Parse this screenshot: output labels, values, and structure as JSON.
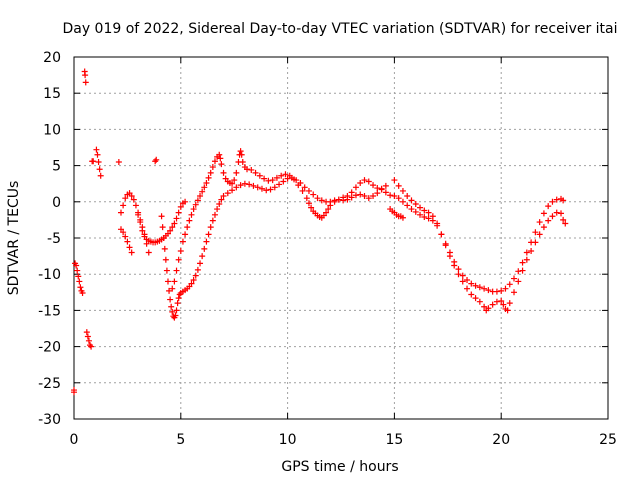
{
  "chart_data": {
    "type": "scatter",
    "title": "Day 019 of 2022, Sidereal Day-to-day VTEC variation (SDTVAR) for receiver itai",
    "xlabel": "GPS time / hours",
    "ylabel": "SDTVAR / TECUs",
    "xlim": [
      0,
      25
    ],
    "ylim": [
      -30,
      20
    ],
    "x_ticks": [
      0,
      5,
      10,
      15,
      20,
      25
    ],
    "y_ticks": [
      -30,
      -25,
      -20,
      -15,
      -10,
      -5,
      0,
      5,
      10,
      15,
      20
    ],
    "x_tick_labels": [
      "0",
      "5",
      "10",
      "15",
      "20",
      "25"
    ],
    "y_tick_labels": [
      "-30",
      "-25",
      "-20",
      "-15",
      "-10",
      "-5",
      "0",
      "5",
      "10",
      "15",
      "20"
    ],
    "grid": true,
    "marker": "+",
    "color": "#ff0000",
    "series": [
      {
        "name": "sdtvar",
        "points": [
          [
            0.0,
            -26.0
          ],
          [
            0.0,
            -26.3
          ],
          [
            0.05,
            -8.5
          ],
          [
            0.1,
            -8.8
          ],
          [
            0.15,
            -9.5
          ],
          [
            0.2,
            -10.3
          ],
          [
            0.25,
            -11.0
          ],
          [
            0.3,
            -11.8
          ],
          [
            0.35,
            -12.3
          ],
          [
            0.4,
            -12.6
          ],
          [
            0.5,
            18.0
          ],
          [
            0.52,
            17.5
          ],
          [
            0.55,
            16.5
          ],
          [
            0.6,
            -18.0
          ],
          [
            0.65,
            -18.6
          ],
          [
            0.7,
            -19.2
          ],
          [
            0.75,
            -19.8
          ],
          [
            0.8,
            -20.0
          ],
          [
            0.85,
            5.6
          ],
          [
            0.9,
            5.6
          ],
          [
            1.05,
            7.2
          ],
          [
            1.1,
            6.5
          ],
          [
            1.15,
            5.5
          ],
          [
            1.2,
            4.5
          ],
          [
            1.25,
            3.6
          ],
          [
            2.1,
            5.5
          ],
          [
            3.8,
            5.6
          ],
          [
            3.85,
            5.8
          ],
          [
            2.2,
            -1.5
          ],
          [
            2.3,
            -0.5
          ],
          [
            2.4,
            0.5
          ],
          [
            2.5,
            1.0
          ],
          [
            2.6,
            1.2
          ],
          [
            2.7,
            0.8
          ],
          [
            2.8,
            0.3
          ],
          [
            2.9,
            -0.5
          ],
          [
            3.0,
            -1.5
          ],
          [
            3.1,
            -2.8
          ],
          [
            3.2,
            -4.0
          ],
          [
            3.3,
            -4.8
          ],
          [
            3.4,
            -5.2
          ],
          [
            3.5,
            -5.4
          ],
          [
            3.6,
            -5.5
          ],
          [
            3.7,
            -5.6
          ],
          [
            3.8,
            -5.6
          ],
          [
            3.9,
            -5.5
          ],
          [
            4.0,
            -5.4
          ],
          [
            4.1,
            -5.2
          ],
          [
            4.2,
            -5.0
          ],
          [
            4.3,
            -4.7
          ],
          [
            4.4,
            -4.4
          ],
          [
            4.5,
            -4.0
          ],
          [
            4.6,
            -3.5
          ],
          [
            4.7,
            -3.0
          ],
          [
            4.8,
            -2.3
          ],
          [
            4.9,
            -1.5
          ],
          [
            5.0,
            -0.7
          ],
          [
            5.1,
            -0.2
          ],
          [
            5.2,
            0.0
          ],
          [
            2.2,
            -3.8
          ],
          [
            2.3,
            -4.2
          ],
          [
            2.4,
            -4.8
          ],
          [
            2.5,
            -5.5
          ],
          [
            2.6,
            -6.3
          ],
          [
            2.7,
            -7.0
          ],
          [
            3.0,
            -1.8
          ],
          [
            3.1,
            -2.5
          ],
          [
            3.2,
            -3.5
          ],
          [
            3.3,
            -4.5
          ],
          [
            3.4,
            -5.8
          ],
          [
            3.5,
            -7.0
          ],
          [
            4.1,
            -2.0
          ],
          [
            4.15,
            -3.5
          ],
          [
            4.2,
            -5.0
          ],
          [
            4.25,
            -6.5
          ],
          [
            4.3,
            -8.0
          ],
          [
            4.35,
            -9.5
          ],
          [
            4.4,
            -11.0
          ],
          [
            4.45,
            -12.3
          ],
          [
            4.5,
            -13.5
          ],
          [
            4.55,
            -14.5
          ],
          [
            4.6,
            -15.2
          ],
          [
            4.65,
            -15.8
          ],
          [
            4.7,
            -16.0
          ],
          [
            4.75,
            -15.7
          ],
          [
            4.8,
            -15.0
          ],
          [
            4.85,
            -14.0
          ],
          [
            4.9,
            -13.3
          ],
          [
            4.95,
            -12.8
          ],
          [
            5.0,
            -12.6
          ],
          [
            5.1,
            -12.4
          ],
          [
            5.2,
            -12.2
          ],
          [
            5.3,
            -12.0
          ],
          [
            5.4,
            -11.7
          ],
          [
            5.5,
            -11.3
          ],
          [
            5.6,
            -10.8
          ],
          [
            5.7,
            -10.2
          ],
          [
            5.8,
            -9.4
          ],
          [
            5.9,
            -8.5
          ],
          [
            6.0,
            -7.5
          ],
          [
            6.1,
            -6.5
          ],
          [
            6.2,
            -5.5
          ],
          [
            6.3,
            -4.5
          ],
          [
            6.4,
            -3.5
          ],
          [
            6.5,
            -2.6
          ],
          [
            6.6,
            -1.8
          ],
          [
            6.7,
            -1.0
          ],
          [
            6.8,
            -0.3
          ],
          [
            6.9,
            0.3
          ],
          [
            7.0,
            0.8
          ],
          [
            7.2,
            1.2
          ],
          [
            7.4,
            1.6
          ],
          [
            7.6,
            2.0
          ],
          [
            7.8,
            2.3
          ],
          [
            8.0,
            2.5
          ],
          [
            8.2,
            2.4
          ],
          [
            8.4,
            2.2
          ],
          [
            8.6,
            2.0
          ],
          [
            8.8,
            1.8
          ],
          [
            9.0,
            1.6
          ],
          [
            9.2,
            1.7
          ],
          [
            9.4,
            2.0
          ],
          [
            9.6,
            2.4
          ],
          [
            9.8,
            2.8
          ],
          [
            10.0,
            3.2
          ],
          [
            10.2,
            3.3
          ],
          [
            10.4,
            3.0
          ],
          [
            10.6,
            2.6
          ],
          [
            10.8,
            2.0
          ],
          [
            11.0,
            1.5
          ],
          [
            11.2,
            1.0
          ],
          [
            11.4,
            0.5
          ],
          [
            11.6,
            0.2
          ],
          [
            11.8,
            0.0
          ],
          [
            12.0,
            0.0
          ],
          [
            12.2,
            0.2
          ],
          [
            12.4,
            0.3
          ],
          [
            12.6,
            0.2
          ],
          [
            12.8,
            0.3
          ],
          [
            13.0,
            0.6
          ],
          [
            13.2,
            0.9
          ],
          [
            13.4,
            1.0
          ],
          [
            13.6,
            0.8
          ],
          [
            13.8,
            0.5
          ],
          [
            14.0,
            0.8
          ],
          [
            14.2,
            1.2
          ],
          [
            14.4,
            1.8
          ],
          [
            14.6,
            2.2
          ],
          [
            4.6,
            -12.0
          ],
          [
            4.7,
            -11.0
          ],
          [
            4.8,
            -9.5
          ],
          [
            4.9,
            -8.0
          ],
          [
            5.0,
            -6.8
          ],
          [
            5.1,
            -5.5
          ],
          [
            5.2,
            -4.5
          ],
          [
            5.3,
            -3.5
          ],
          [
            5.4,
            -2.6
          ],
          [
            5.5,
            -1.8
          ],
          [
            5.6,
            -1.0
          ],
          [
            5.7,
            -0.4
          ],
          [
            5.8,
            0.2
          ],
          [
            5.9,
            0.8
          ],
          [
            6.0,
            1.4
          ],
          [
            6.1,
            2.0
          ],
          [
            6.2,
            2.6
          ],
          [
            6.3,
            3.3
          ],
          [
            6.4,
            4.0
          ],
          [
            6.5,
            4.8
          ],
          [
            6.6,
            5.6
          ],
          [
            6.7,
            6.2
          ],
          [
            6.8,
            6.5
          ],
          [
            6.85,
            6.0
          ],
          [
            6.9,
            5.2
          ],
          [
            7.0,
            4.0
          ],
          [
            7.1,
            3.2
          ],
          [
            7.2,
            2.8
          ],
          [
            7.3,
            2.6
          ],
          [
            7.4,
            2.5
          ],
          [
            7.5,
            3.0
          ],
          [
            7.6,
            4.0
          ],
          [
            7.7,
            5.5
          ],
          [
            7.75,
            6.5
          ],
          [
            7.8,
            7.0
          ],
          [
            7.85,
            6.5
          ],
          [
            7.9,
            5.5
          ],
          [
            8.0,
            4.8
          ],
          [
            8.1,
            4.5
          ],
          [
            8.3,
            4.4
          ],
          [
            8.5,
            4.0
          ],
          [
            8.7,
            3.6
          ],
          [
            8.9,
            3.2
          ],
          [
            9.1,
            2.9
          ],
          [
            9.3,
            3.0
          ],
          [
            9.5,
            3.3
          ],
          [
            9.7,
            3.6
          ],
          [
            9.9,
            3.8
          ],
          [
            10.1,
            3.6
          ],
          [
            10.3,
            3.1
          ],
          [
            10.5,
            2.3
          ],
          [
            10.7,
            1.5
          ],
          [
            10.9,
            0.5
          ],
          [
            11.0,
            -0.2
          ],
          [
            11.1,
            -0.8
          ],
          [
            11.2,
            -1.3
          ],
          [
            11.3,
            -1.6
          ],
          [
            11.4,
            -1.9
          ],
          [
            11.5,
            -2.1
          ],
          [
            11.6,
            -2.2
          ],
          [
            11.7,
            -1.9
          ],
          [
            11.8,
            -1.5
          ],
          [
            11.9,
            -1.0
          ],
          [
            12.0,
            -0.5
          ],
          [
            12.2,
            0.0
          ],
          [
            12.4,
            0.3
          ],
          [
            12.6,
            0.6
          ],
          [
            12.8,
            0.8
          ],
          [
            13.0,
            1.3
          ],
          [
            13.2,
            2.0
          ],
          [
            13.4,
            2.6
          ],
          [
            13.6,
            3.0
          ],
          [
            13.8,
            2.8
          ],
          [
            14.0,
            2.3
          ],
          [
            14.2,
            1.9
          ],
          [
            14.4,
            1.7
          ],
          [
            14.6,
            1.3
          ],
          [
            14.8,
            0.9
          ],
          [
            14.8,
            -1.0
          ],
          [
            14.9,
            -1.3
          ],
          [
            15.0,
            -1.5
          ],
          [
            15.1,
            -1.8
          ],
          [
            15.2,
            -2.0
          ],
          [
            15.3,
            -2.0
          ],
          [
            15.4,
            -2.2
          ],
          [
            15.0,
            0.8
          ],
          [
            15.2,
            0.5
          ],
          [
            15.4,
            0.0
          ],
          [
            15.6,
            -0.5
          ],
          [
            15.8,
            -1.0
          ],
          [
            16.0,
            -1.4
          ],
          [
            16.2,
            -1.8
          ],
          [
            16.4,
            -2.1
          ],
          [
            16.6,
            -2.3
          ],
          [
            16.8,
            -2.6
          ],
          [
            17.0,
            -3.3
          ],
          [
            17.2,
            -4.5
          ],
          [
            17.4,
            -5.8
          ],
          [
            17.6,
            -7.0
          ],
          [
            17.8,
            -8.3
          ],
          [
            18.0,
            -9.3
          ],
          [
            18.2,
            -10.2
          ],
          [
            18.4,
            -10.8
          ],
          [
            18.6,
            -11.3
          ],
          [
            18.8,
            -11.6
          ],
          [
            19.0,
            -11.8
          ],
          [
            19.2,
            -12.0
          ],
          [
            19.4,
            -12.2
          ],
          [
            19.6,
            -12.4
          ],
          [
            19.8,
            -12.4
          ],
          [
            20.0,
            -12.3
          ],
          [
            20.2,
            -12.0
          ],
          [
            20.4,
            -11.4
          ],
          [
            20.6,
            -10.6
          ],
          [
            20.8,
            -9.6
          ],
          [
            21.0,
            -8.4
          ],
          [
            21.2,
            -7.0
          ],
          [
            21.4,
            -5.6
          ],
          [
            21.6,
            -4.2
          ],
          [
            21.8,
            -2.8
          ],
          [
            22.0,
            -1.6
          ],
          [
            22.2,
            -0.6
          ],
          [
            22.4,
            0.0
          ],
          [
            22.6,
            0.3
          ],
          [
            22.8,
            0.4
          ],
          [
            22.9,
            0.2
          ],
          [
            15.0,
            3.0
          ],
          [
            15.2,
            2.2
          ],
          [
            15.4,
            1.5
          ],
          [
            15.6,
            0.8
          ],
          [
            15.8,
            0.2
          ],
          [
            16.0,
            -0.3
          ],
          [
            16.2,
            -0.8
          ],
          [
            16.4,
            -1.2
          ],
          [
            16.6,
            -1.5
          ],
          [
            16.8,
            -2.0
          ],
          [
            17.0,
            -3.0
          ],
          [
            17.2,
            -4.5
          ],
          [
            17.4,
            -6.0
          ],
          [
            17.6,
            -7.5
          ],
          [
            17.8,
            -8.8
          ],
          [
            18.0,
            -10.0
          ],
          [
            18.2,
            -11.0
          ],
          [
            18.4,
            -12.0
          ],
          [
            18.6,
            -12.8
          ],
          [
            18.8,
            -13.3
          ],
          [
            19.0,
            -13.8
          ],
          [
            19.2,
            -14.5
          ],
          [
            19.3,
            -15.0
          ],
          [
            19.4,
            -14.7
          ],
          [
            19.6,
            -14.2
          ],
          [
            19.8,
            -13.8
          ],
          [
            20.0,
            -13.7
          ],
          [
            20.1,
            -14.2
          ],
          [
            20.2,
            -14.8
          ],
          [
            20.3,
            -15.0
          ],
          [
            20.4,
            -14.0
          ],
          [
            20.6,
            -12.5
          ],
          [
            20.8,
            -11.0
          ],
          [
            21.0,
            -9.5
          ],
          [
            21.2,
            -8.0
          ],
          [
            21.4,
            -6.8
          ],
          [
            21.6,
            -5.6
          ],
          [
            21.8,
            -4.5
          ],
          [
            22.0,
            -3.5
          ],
          [
            22.2,
            -2.6
          ],
          [
            22.4,
            -2.0
          ],
          [
            22.6,
            -1.5
          ],
          [
            22.8,
            -1.6
          ],
          [
            22.9,
            -2.5
          ],
          [
            23.0,
            -3.0
          ]
        ]
      }
    ]
  }
}
